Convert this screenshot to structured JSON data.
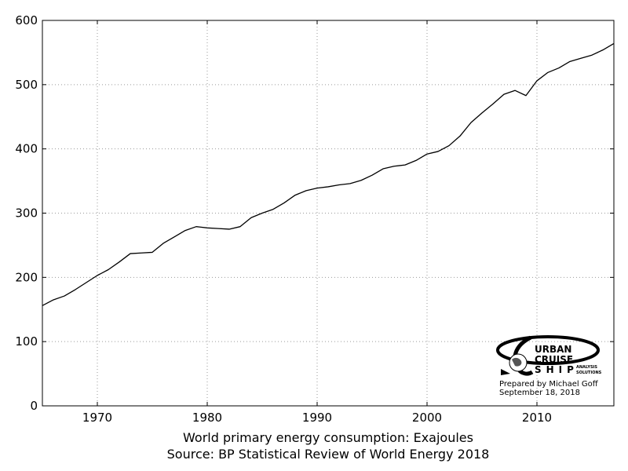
{
  "chart_data": {
    "type": "line",
    "title": "",
    "xlabel": "World primary energy consumption: Exajoules",
    "source": "Source: BP Statistical Review of World Energy 2018",
    "xlim": [
      1965,
      2017
    ],
    "ylim": [
      0,
      600
    ],
    "x_ticks": [
      1970,
      1980,
      1990,
      2000,
      2010
    ],
    "y_ticks": [
      0,
      100,
      200,
      300,
      400,
      500,
      600
    ],
    "grid": true,
    "line_color": "#000000",
    "grid_color": "#9a9a9a",
    "x": [
      1965,
      1966,
      1967,
      1968,
      1969,
      1970,
      1971,
      1972,
      1973,
      1974,
      1975,
      1976,
      1977,
      1978,
      1979,
      1980,
      1981,
      1982,
      1983,
      1984,
      1985,
      1986,
      1987,
      1988,
      1989,
      1990,
      1991,
      1992,
      1993,
      1994,
      1995,
      1996,
      1997,
      1998,
      1999,
      2000,
      2001,
      2002,
      2003,
      2004,
      2005,
      2006,
      2007,
      2008,
      2009,
      2010,
      2011,
      2012,
      2013,
      2014,
      2015,
      2016,
      2017
    ],
    "y": [
      156,
      165,
      171,
      181,
      192,
      203,
      212,
      224,
      237,
      238,
      239,
      253,
      263,
      273,
      279,
      277,
      276,
      275,
      279,
      293,
      300,
      306,
      316,
      328,
      335,
      339,
      341,
      344,
      346,
      351,
      359,
      369,
      373,
      375,
      382,
      392,
      396,
      405,
      420,
      441,
      456,
      470,
      485,
      491,
      483,
      506,
      519,
      526,
      536,
      541,
      546,
      554,
      564
    ]
  },
  "logo": {
    "line1": "URBAN",
    "line2": "CRUISE",
    "line3": "SHIP",
    "tagline1": "ANALYSIS",
    "tagline2": "SOLUTIONS"
  },
  "credit": {
    "prepared_by": "Prepared by Michael Goff",
    "date": "September 18, 2018"
  }
}
